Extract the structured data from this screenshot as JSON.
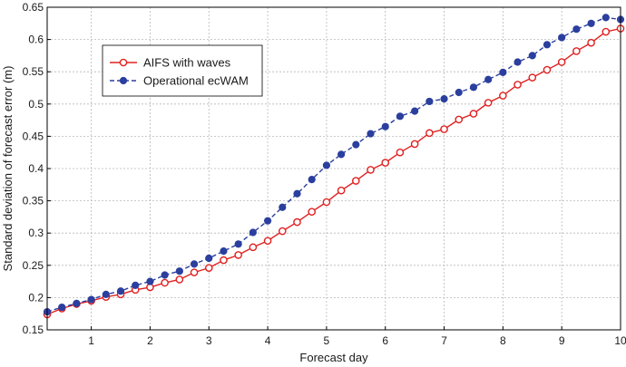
{
  "chart_data": {
    "type": "line",
    "xlabel": "Forecast day",
    "ylabel": "Standard deviation of forecast error (m)",
    "xlim": [
      0.25,
      10
    ],
    "ylim": [
      0.15,
      0.65
    ],
    "xticks": [
      1,
      2,
      3,
      4,
      5,
      6,
      7,
      8,
      9,
      10
    ],
    "yticks": [
      0.15,
      0.2,
      0.25,
      0.3,
      0.35,
      0.4,
      0.45,
      0.5,
      0.55,
      0.6,
      0.65
    ],
    "xtick_labels": [
      "1",
      "2",
      "3",
      "4",
      "5",
      "6",
      "7",
      "8",
      "9",
      "10"
    ],
    "ytick_labels": [
      "0.15",
      "0.2",
      "0.25",
      "0.3",
      "0.35",
      "0.4",
      "0.45",
      "0.5",
      "0.55",
      "0.6",
      "0.65"
    ],
    "grid": true,
    "legend_position": "top-left",
    "x": [
      0.25,
      0.5,
      0.75,
      1.0,
      1.25,
      1.5,
      1.75,
      2.0,
      2.25,
      2.5,
      2.75,
      3.0,
      3.25,
      3.5,
      3.75,
      4.0,
      4.25,
      4.5,
      4.75,
      5.0,
      5.25,
      5.5,
      5.75,
      6.0,
      6.25,
      6.5,
      6.75,
      7.0,
      7.25,
      7.5,
      7.75,
      8.0,
      8.25,
      8.5,
      8.75,
      9.0,
      9.25,
      9.5,
      9.75,
      10.0
    ],
    "series": [
      {
        "name": "AIFS with waves",
        "color": "#e02020",
        "line_style": "solid",
        "marker": "open-circle",
        "values": [
          0.174,
          0.183,
          0.19,
          0.195,
          0.201,
          0.205,
          0.212,
          0.216,
          0.223,
          0.228,
          0.239,
          0.246,
          0.258,
          0.266,
          0.278,
          0.288,
          0.303,
          0.317,
          0.333,
          0.348,
          0.366,
          0.381,
          0.398,
          0.409,
          0.425,
          0.438,
          0.455,
          0.461,
          0.476,
          0.485,
          0.502,
          0.513,
          0.53,
          0.541,
          0.553,
          0.565,
          0.582,
          0.595,
          0.612,
          0.617
        ]
      },
      {
        "name": "Operational ecWAM",
        "color": "#2b3f9e",
        "line_style": "dashed",
        "marker": "filled-circle",
        "values": [
          0.178,
          0.185,
          0.191,
          0.197,
          0.205,
          0.21,
          0.219,
          0.225,
          0.235,
          0.241,
          0.252,
          0.261,
          0.272,
          0.283,
          0.301,
          0.319,
          0.34,
          0.361,
          0.383,
          0.405,
          0.422,
          0.437,
          0.454,
          0.465,
          0.481,
          0.489,
          0.504,
          0.508,
          0.518,
          0.526,
          0.538,
          0.549,
          0.565,
          0.575,
          0.592,
          0.603,
          0.616,
          0.625,
          0.634,
          0.631
        ]
      }
    ]
  }
}
